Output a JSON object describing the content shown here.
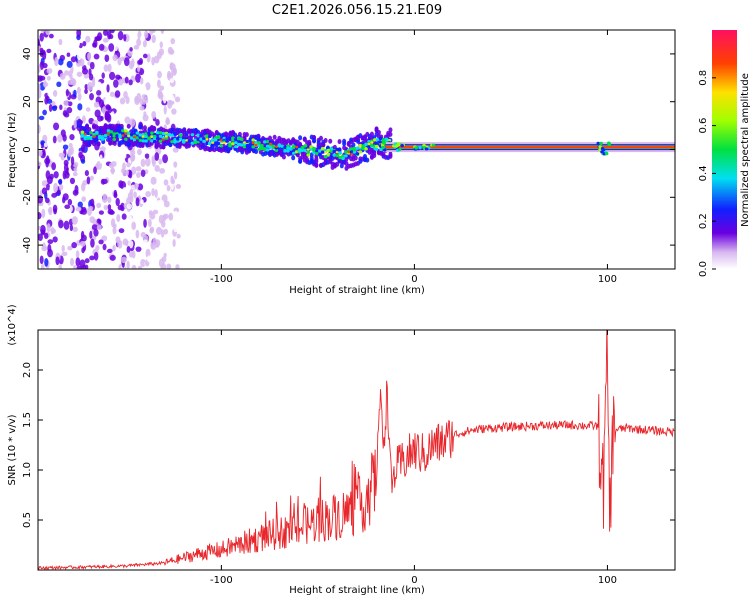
{
  "chart_data": [
    {
      "type": "heatmap",
      "title": "C2E1.2026.056.15.21.E09",
      "xlabel": "Height of straight line (km)",
      "ylabel": "Frequency (Hz)",
      "xlim": [
        -195,
        135
      ],
      "ylim": [
        -50,
        50
      ],
      "xticks": [
        -100,
        0,
        100
      ],
      "yticks": [
        -40,
        -20,
        0,
        20,
        40
      ],
      "colorbar": {
        "label": "Normalized spectral amplitude",
        "range": [
          0.0,
          1.0
        ],
        "ticks": [
          0.0,
          0.2,
          0.4,
          0.6,
          0.8
        ]
      },
      "ridge": {
        "x": [
          -170,
          -150,
          -130,
          -110,
          -90,
          -70,
          -50,
          -35,
          -20,
          -10,
          0,
          10,
          30,
          60,
          95,
          100,
          135
        ],
        "freq": [
          6,
          6,
          5,
          4,
          3,
          1,
          -1,
          -2,
          3,
          2,
          1,
          1,
          1,
          1,
          1,
          1,
          1
        ]
      },
      "noise_region_x": [
        -195,
        -130
      ]
    },
    {
      "type": "line",
      "xlabel": "Height of straight line (km)",
      "ylabel": "SNR (10 * v/v)",
      "multiplier": "(x10^4)",
      "xlim": [
        -195,
        135
      ],
      "ylim": [
        0,
        24000
      ],
      "xticks": [
        -100,
        0,
        100
      ],
      "yticks": [
        5000,
        10000,
        15000,
        20000
      ],
      "ytick_labels": [
        "0.5",
        "1.0",
        "1.5",
        "2.0"
      ],
      "series": [
        {
          "name": "SNR",
          "color": "#e8262b",
          "x": [
            -195,
            -170,
            -150,
            -130,
            -120,
            -110,
            -100,
            -90,
            -80,
            -70,
            -60,
            -50,
            -40,
            -30,
            -25,
            -20,
            -18,
            -16,
            -14,
            -12,
            -10,
            -5,
            0,
            5,
            10,
            15,
            20,
            30,
            40,
            60,
            80,
            95,
            98,
            100,
            101,
            103,
            110,
            120,
            135
          ],
          "y": [
            200,
            300,
            400,
            700,
            1200,
            1700,
            2000,
            2600,
            3200,
            3700,
            4200,
            4900,
            5400,
            6200,
            7000,
            9000,
            17000,
            13000,
            18000,
            8000,
            10000,
            11000,
            12000,
            11500,
            12500,
            12800,
            13500,
            14000,
            14200,
            14400,
            14500,
            14400,
            8000,
            23000,
            5000,
            14000,
            14200,
            14000,
            13800
          ]
        }
      ]
    }
  ]
}
